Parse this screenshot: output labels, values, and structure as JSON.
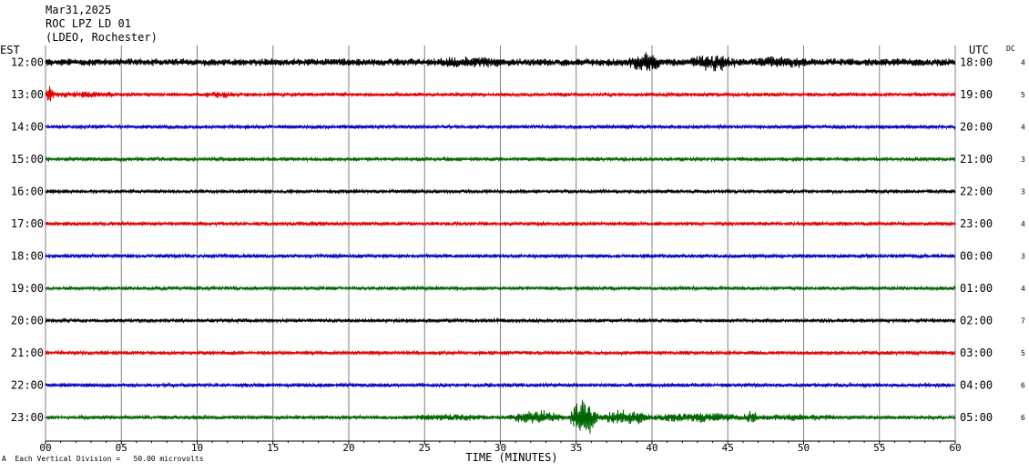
{
  "header": {
    "date": "Mar31,2025",
    "station": "ROC LPZ LD 01",
    "network": "(LDEO, Rochester)"
  },
  "left_axis_label": "EST",
  "right_axis_label": "UTC",
  "dc_label": "DC",
  "footer": {
    "mark": "A",
    "scale_text": "Each Vertical Division =   50.00 microvolts"
  },
  "colors": {
    "grid": "#808080",
    "traces": [
      "#000000",
      "#e00000",
      "#0000c0",
      "#006400"
    ]
  },
  "chart_data": {
    "type": "line",
    "title": "",
    "xlabel": "TIME (MINUTES)",
    "ylabel": "",
    "xlim": [
      0,
      60
    ],
    "x_ticks": [
      "00",
      "05",
      "10",
      "15",
      "20",
      "25",
      "30",
      "35",
      "40",
      "45",
      "50",
      "55",
      "60"
    ],
    "grid": true,
    "rows": [
      {
        "est": "12:00",
        "utc": "18:00",
        "dc": "4",
        "color": "#000000",
        "base_amp": 4,
        "events": [
          [
            0,
            60,
            0.8
          ],
          [
            1,
            3,
            0.4
          ],
          [
            10,
            14,
            0.6
          ],
          [
            15.5,
            26,
            0.9
          ],
          [
            26,
            30,
            1.2
          ],
          [
            31,
            34,
            0.7
          ],
          [
            38.5,
            40.5,
            2.6
          ],
          [
            42.5,
            45.5,
            2.2
          ],
          [
            47,
            50,
            1.3
          ],
          [
            53,
            56,
            0.7
          ]
        ]
      },
      {
        "est": "13:00",
        "utc": "19:00",
        "dc": "5",
        "color": "#e00000",
        "base_amp": 2,
        "events": [
          [
            0,
            0.6,
            5
          ],
          [
            0.6,
            4.5,
            1.5
          ],
          [
            10.5,
            12.5,
            1.5
          ]
        ]
      },
      {
        "est": "14:00",
        "utc": "20:00",
        "dc": "4",
        "color": "#0000c0",
        "base_amp": 2,
        "events": []
      },
      {
        "est": "15:00",
        "utc": "21:00",
        "dc": "3",
        "color": "#006400",
        "base_amp": 2,
        "events": []
      },
      {
        "est": "16:00",
        "utc": "22:00",
        "dc": "3",
        "color": "#000000",
        "base_amp": 2,
        "events": []
      },
      {
        "est": "17:00",
        "utc": "23:00",
        "dc": "4",
        "color": "#e00000",
        "base_amp": 2,
        "events": [
          [
            17.5,
            18.5,
            1.2
          ]
        ]
      },
      {
        "est": "18:00",
        "utc": "00:00",
        "dc": "3",
        "color": "#0000c0",
        "base_amp": 2,
        "events": []
      },
      {
        "est": "19:00",
        "utc": "01:00",
        "dc": "4",
        "color": "#006400",
        "base_amp": 2,
        "events": [
          [
            39,
            40.5,
            0.8
          ]
        ]
      },
      {
        "est": "20:00",
        "utc": "02:00",
        "dc": "7",
        "color": "#000000",
        "base_amp": 2,
        "events": []
      },
      {
        "est": "21:00",
        "utc": "03:00",
        "dc": "5",
        "color": "#e00000",
        "base_amp": 2,
        "events": []
      },
      {
        "est": "22:00",
        "utc": "04:00",
        "dc": "6",
        "color": "#0000c0",
        "base_amp": 2,
        "events": []
      },
      {
        "est": "23:00",
        "utc": "05:00",
        "dc": "6",
        "color": "#006400",
        "base_amp": 2,
        "events": [
          [
            24.5,
            29,
            1.5
          ],
          [
            30.5,
            34.5,
            3.5
          ],
          [
            34.5,
            36.5,
            10
          ],
          [
            36.5,
            40,
            4
          ],
          [
            40,
            46,
            2.5
          ],
          [
            46,
            47,
            4
          ],
          [
            47,
            52,
            1.5
          ]
        ]
      }
    ]
  }
}
